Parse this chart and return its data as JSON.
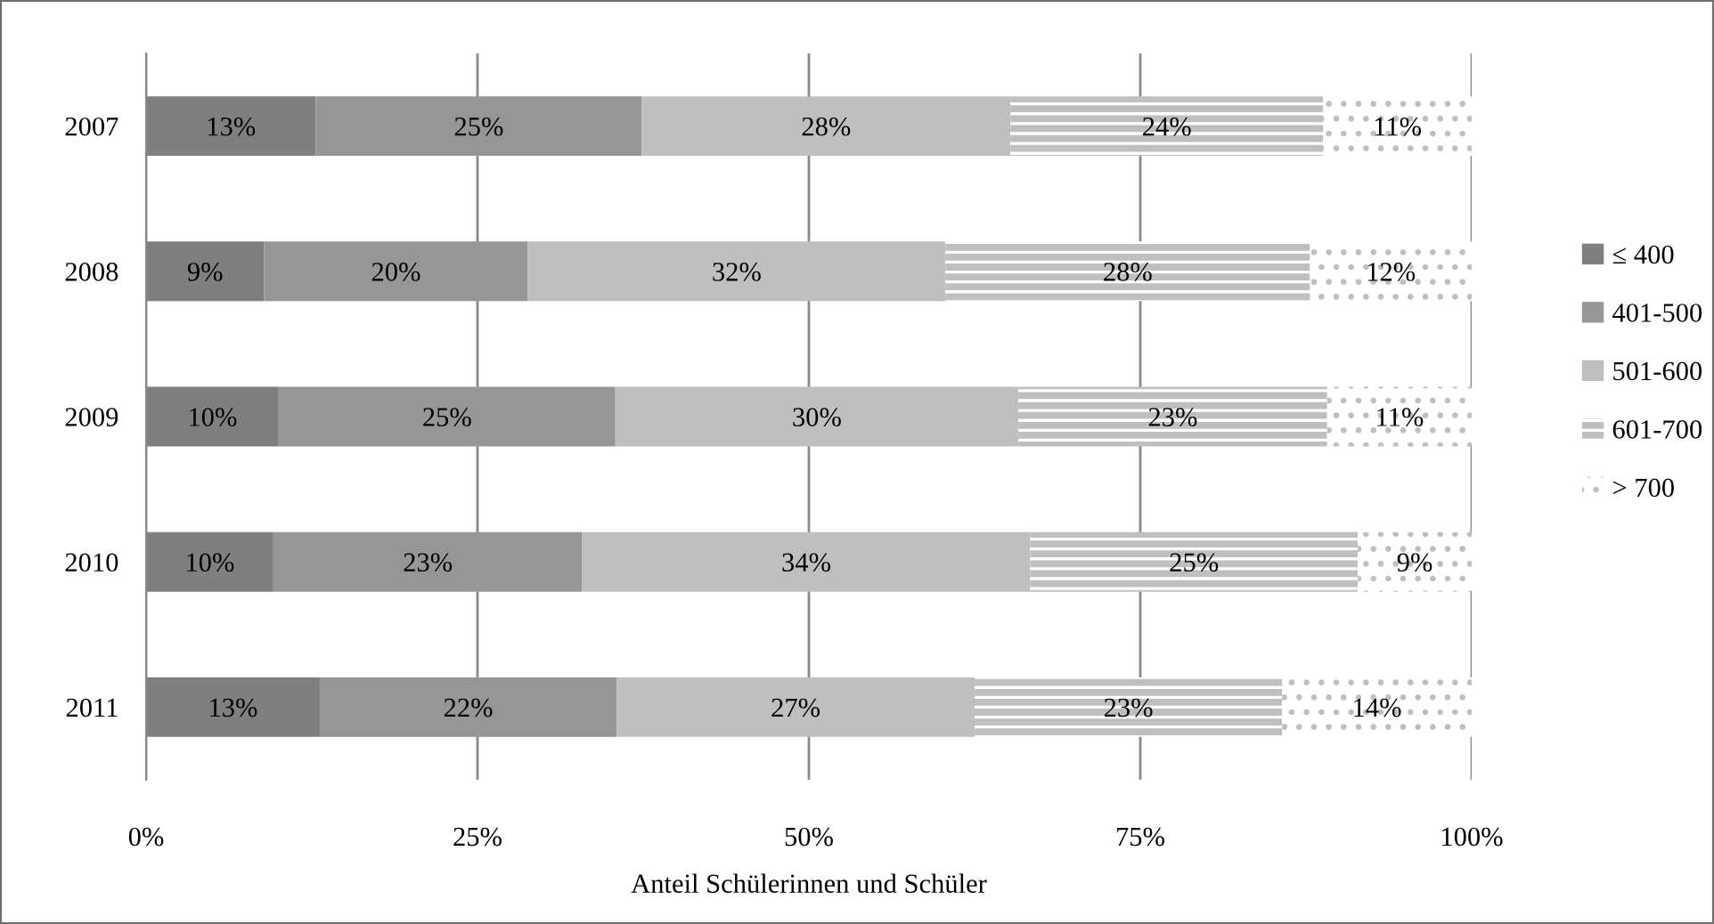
{
  "chart_data": {
    "type": "bar",
    "orientation": "horizontal",
    "stacked": true,
    "categories": [
      "2007",
      "2008",
      "2009",
      "2010",
      "2011"
    ],
    "series": [
      {
        "name": "≤ 400",
        "color": "#7f7f7f",
        "values": [
          12.8,
          8.9,
          10.0,
          9.6,
          13.1
        ],
        "value_labels": [
          "13%",
          "9%",
          "10%",
          "10%",
          "13%"
        ]
      },
      {
        "name": "401-500",
        "color": "#969696",
        "values": [
          24.6,
          19.9,
          25.4,
          23.3,
          22.4
        ],
        "value_labels": [
          "25%",
          "20%",
          "25%",
          "23%",
          "22%"
        ]
      },
      {
        "name": "501-600",
        "color": "#bfbfbf",
        "values": [
          27.8,
          31.5,
          30.4,
          33.8,
          27.0
        ],
        "value_labels": [
          "28%",
          "32%",
          "30%",
          "34%",
          "27%"
        ]
      },
      {
        "name": "601-700",
        "color": "#bfbfbf",
        "values": [
          23.6,
          27.5,
          23.3,
          24.7,
          23.2
        ],
        "value_labels": [
          "24%",
          "28%",
          "23%",
          "25%",
          "23%"
        ]
      },
      {
        "name": "> 700",
        "color": "#bfbfbf",
        "values": [
          11.2,
          12.2,
          10.9,
          8.6,
          14.3
        ],
        "value_labels": [
          "11%",
          "12%",
          "11%",
          "9%",
          "14%"
        ]
      }
    ],
    "xlabel": "Anteil Schülerinnen und Schüler",
    "xlim": [
      0,
      100
    ],
    "xticks": [
      {
        "value": 0,
        "label": "0%"
      },
      {
        "value": 25,
        "label": "25%"
      },
      {
        "value": 50,
        "label": "50%"
      },
      {
        "value": 75,
        "label": "75%"
      },
      {
        "value": 100,
        "label": "100%"
      }
    ],
    "grid": "x",
    "legend": "right"
  }
}
